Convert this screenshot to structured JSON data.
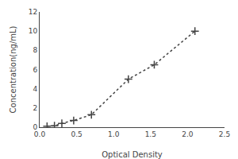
{
  "chart_data": {
    "type": "line",
    "x": [
      0.1,
      0.2,
      0.3,
      0.46,
      0.7,
      1.2,
      1.55,
      2.1
    ],
    "values": [
      0.1,
      0.15,
      0.4,
      0.7,
      1.3,
      5.0,
      6.5,
      10.0
    ],
    "xlabel": "Optical Density",
    "ylabel": "Concentration(ng/mL)",
    "xlim": [
      0,
      2.5
    ],
    "ylim": [
      0,
      12
    ],
    "xticks": [
      {
        "value": 0,
        "label": "0.0"
      },
      0.5,
      {
        "value": 1,
        "label": "1.0"
      },
      1.5,
      {
        "value": 2,
        "label": "2.0"
      },
      2.5
    ],
    "yticks": [
      0,
      2,
      4,
      6,
      8,
      10,
      12
    ],
    "color": "#444444",
    "marker": "+",
    "line_style": "dotted",
    "grid": false
  }
}
